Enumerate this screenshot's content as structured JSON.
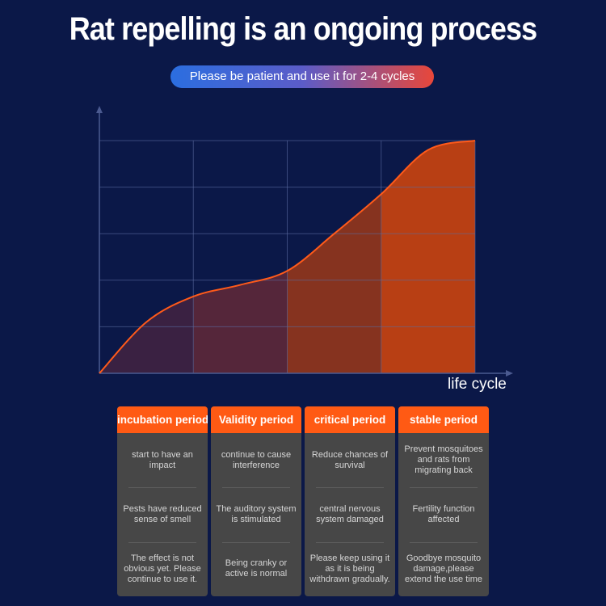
{
  "header": {
    "title": "Rat repelling is an ongoing process",
    "subtitle": "Please be patient and use it for 2-4 cycles"
  },
  "chart_data": {
    "type": "area",
    "title": "Rat repelling is an ongoing process",
    "xlabel": "life cycle",
    "ylabel": "",
    "xlim": [
      0,
      4
    ],
    "ylim": [
      0,
      5
    ],
    "grid": true,
    "x": [
      0,
      0.5,
      1,
      1.5,
      2,
      2.5,
      3,
      3.5,
      4
    ],
    "y": [
      0,
      1.1,
      1.65,
      1.9,
      2.2,
      3.0,
      3.85,
      4.8,
      5
    ],
    "band_colors": [
      "#3a2142",
      "#55263a",
      "#86331f",
      "#b83f14"
    ],
    "line_color": "#ff5a1a"
  },
  "periods": [
    {
      "name": "incubation period",
      "items": [
        "start to have an impact",
        "Pests have reduced sense of smell",
        "The effect is not obvious yet. Please continue to use it."
      ]
    },
    {
      "name": "Validity period",
      "items": [
        "continue to cause interference",
        "The auditory system is stimulated",
        "Being cranky or active is normal"
      ]
    },
    {
      "name": "critical period",
      "items": [
        "Reduce chances of survival",
        "central nervous system damaged",
        "Please keep using it as it is being withdrawn gradually."
      ]
    },
    {
      "name": "stable period",
      "items": [
        "Prevent mosquitoes and rats from migrating back",
        "Fertility function affected",
        "Goodbye mosquito damage,please extend the use time"
      ]
    }
  ]
}
